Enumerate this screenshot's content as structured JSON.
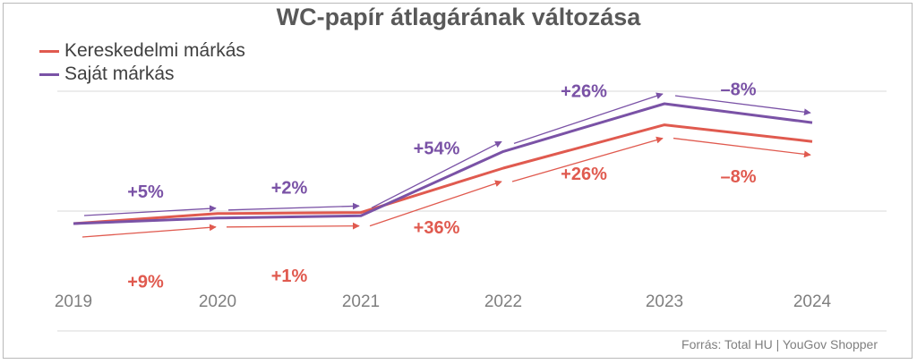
{
  "chart_data": {
    "type": "line",
    "title": "WC-papír átlagárának változása",
    "x": [
      "2019",
      "2020",
      "2021",
      "2022",
      "2023",
      "2024"
    ],
    "series": [
      {
        "name": "Kereskedelmi márkás",
        "color": "#e05a4f",
        "index": [
          100,
          109,
          110,
          150,
          189,
          174
        ],
        "changes": [
          "+9%",
          "+1%",
          "+36%",
          "+26%",
          "–8%"
        ]
      },
      {
        "name": "Saját márkás",
        "color": "#7a52a6",
        "index": [
          100,
          105,
          107,
          165,
          208,
          191
        ],
        "changes": [
          "+5%",
          "+2%",
          "+54%",
          "+26%",
          "–8%"
        ]
      }
    ],
    "grid": "horizontal",
    "legend": "top-left"
  },
  "source": "Forrás: Total HU | YouGov Shopper"
}
